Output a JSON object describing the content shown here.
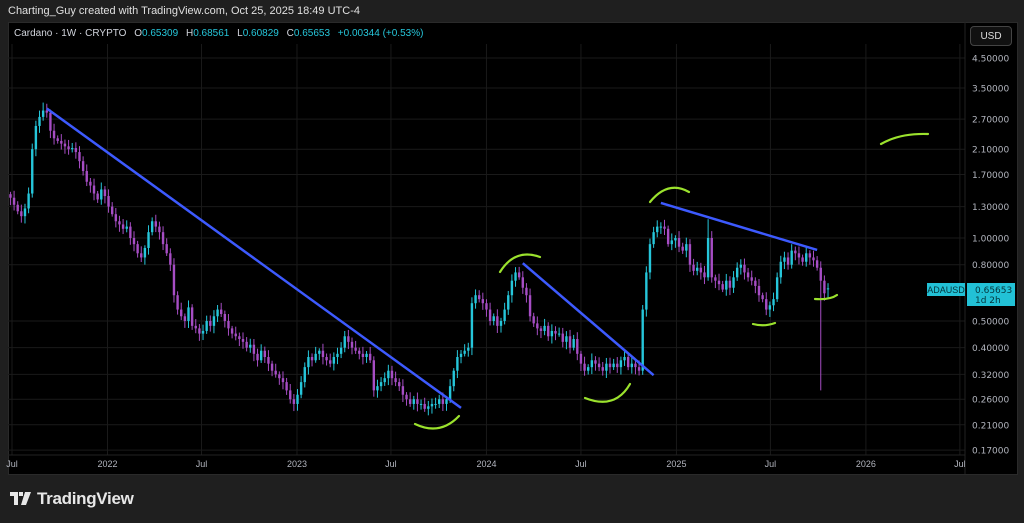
{
  "caption": "Charting_Guy created with TradingView.com, Oct 25, 2025 18:49 UTC-4",
  "legend": {
    "symbol": "Cardano · 1W · CRYPTO",
    "open_label": "O",
    "open": "0.65309",
    "high_label": "H",
    "high": "0.68561",
    "low_label": "L",
    "low": "0.60829",
    "close_label": "C",
    "close": "0.65653",
    "change": "+0.00344 (+0.53%)"
  },
  "currency_button": "USD",
  "price_tag": {
    "symbol": "ADAUSD",
    "value": "0.65653",
    "countdown": "1d 2h"
  },
  "logo": {
    "text": "TradingView"
  },
  "colors": {
    "up": "#26c6da",
    "down": "#a64dc4",
    "trendline": "#3d5afe",
    "annotation": "#9be22d",
    "tag": "#22c1d6",
    "grid": "#1a1a1a"
  },
  "chart_data": {
    "type": "candlestick",
    "symbol": "ADAUSD",
    "interval": "1W",
    "y_scale": "log",
    "ylim": [
      0.16,
      5.2
    ],
    "grid": true,
    "y_ticks": [
      "4.50000",
      "3.50000",
      "2.70000",
      "2.10000",
      "1.70000",
      "1.30000",
      "1.00000",
      "0.80000",
      "0.50000",
      "0.40000",
      "0.32000",
      "0.26000",
      "0.21000",
      "0.17000"
    ],
    "x_ticks": [
      {
        "label": "Jul",
        "date": "2021-07-01"
      },
      {
        "label": "2022",
        "date": "2022-01-01"
      },
      {
        "label": "Jul",
        "date": "2022-07-01"
      },
      {
        "label": "2023",
        "date": "2023-01-01"
      },
      {
        "label": "Jul",
        "date": "2023-07-01"
      },
      {
        "label": "2024",
        "date": "2024-01-01"
      },
      {
        "label": "Jul",
        "date": "2024-07-01"
      },
      {
        "label": "2025",
        "date": "2025-01-01"
      },
      {
        "label": "Jul",
        "date": "2025-07-01"
      },
      {
        "label": "2026",
        "date": "2026-01-01"
      },
      {
        "label": "Jul",
        "date": "2026-07-01"
      }
    ],
    "weekly_closes": [
      1.4,
      1.32,
      1.25,
      1.2,
      1.28,
      1.45,
      2.1,
      2.55,
      2.75,
      2.9,
      2.85,
      2.45,
      2.3,
      2.25,
      2.2,
      2.15,
      2.1,
      2.12,
      2.05,
      1.9,
      1.75,
      1.6,
      1.55,
      1.45,
      1.38,
      1.5,
      1.42,
      1.3,
      1.22,
      1.15,
      1.12,
      1.08,
      1.1,
      1.0,
      0.95,
      0.88,
      0.85,
      0.92,
      1.05,
      1.15,
      1.1,
      1.05,
      0.95,
      0.88,
      0.8,
      0.62,
      0.55,
      0.52,
      0.5,
      0.56,
      0.48,
      0.47,
      0.45,
      0.46,
      0.5,
      0.48,
      0.52,
      0.55,
      0.53,
      0.5,
      0.47,
      0.45,
      0.44,
      0.43,
      0.42,
      0.4,
      0.41,
      0.38,
      0.36,
      0.39,
      0.37,
      0.35,
      0.33,
      0.32,
      0.31,
      0.3,
      0.28,
      0.26,
      0.25,
      0.27,
      0.3,
      0.34,
      0.37,
      0.36,
      0.38,
      0.39,
      0.37,
      0.36,
      0.35,
      0.37,
      0.38,
      0.4,
      0.44,
      0.42,
      0.4,
      0.39,
      0.38,
      0.37,
      0.38,
      0.36,
      0.28,
      0.29,
      0.3,
      0.31,
      0.33,
      0.31,
      0.3,
      0.29,
      0.27,
      0.26,
      0.25,
      0.26,
      0.25,
      0.25,
      0.24,
      0.245,
      0.25,
      0.25,
      0.26,
      0.25,
      0.26,
      0.29,
      0.33,
      0.37,
      0.38,
      0.39,
      0.4,
      0.58,
      0.62,
      0.6,
      0.58,
      0.55,
      0.5,
      0.52,
      0.48,
      0.5,
      0.55,
      0.62,
      0.7,
      0.75,
      0.72,
      0.66,
      0.62,
      0.52,
      0.49,
      0.47,
      0.46,
      0.48,
      0.44,
      0.46,
      0.45,
      0.45,
      0.42,
      0.44,
      0.4,
      0.43,
      0.38,
      0.35,
      0.33,
      0.34,
      0.36,
      0.35,
      0.34,
      0.33,
      0.35,
      0.34,
      0.35,
      0.34,
      0.36,
      0.37,
      0.34,
      0.35,
      0.34,
      0.33,
      0.55,
      0.75,
      0.95,
      1.05,
      1.1,
      1.1,
      1.08,
      0.95,
      0.98,
      1.0,
      0.93,
      0.9,
      0.95,
      0.8,
      0.76,
      0.78,
      0.75,
      0.72,
      1.0,
      0.72,
      0.7,
      0.68,
      0.65,
      0.7,
      0.66,
      0.72,
      0.78,
      0.8,
      0.75,
      0.72,
      0.7,
      0.67,
      0.62,
      0.6,
      0.55,
      0.57,
      0.6,
      0.72,
      0.82,
      0.85,
      0.8,
      0.9,
      0.88,
      0.85,
      0.82,
      0.88,
      0.85,
      0.83,
      0.78,
      0.7,
      0.63,
      0.65653
    ],
    "last_candle": {
      "open": 0.65309,
      "high": 0.68561,
      "low": 0.60829,
      "close": 0.65653
    },
    "wick_extremes": [
      {
        "index": 223,
        "low": 0.28
      },
      {
        "index": 9,
        "high": 3.1
      },
      {
        "index": 192,
        "high": 1.17
      }
    ],
    "trendlines": [
      {
        "from": {
          "date": "2021-09-06",
          "price": 2.95
        },
        "to": {
          "date": "2023-11-13",
          "price": 0.242
        }
      },
      {
        "from": {
          "date": "2024-03-11",
          "price": 0.81
        },
        "to": {
          "date": "2024-11-18",
          "price": 0.318
        }
      },
      {
        "from": {
          "date": "2024-12-02",
          "price": 1.34
        },
        "to": {
          "date": "2025-09-29",
          "price": 0.905
        }
      }
    ]
  }
}
